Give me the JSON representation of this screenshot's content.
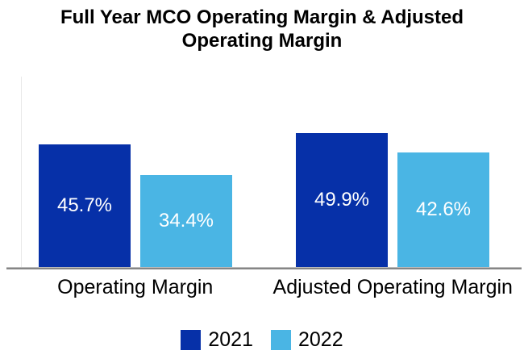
{
  "title": {
    "line1": "Full Year MCO Operating Margin & Adjusted",
    "line2": "Operating Margin"
  },
  "chart_data": {
    "type": "bar",
    "title": "Full Year MCO Operating Margin & Adjusted Operating Margin",
    "categories": [
      "Operating Margin",
      "Adjusted Operating Margin"
    ],
    "series": [
      {
        "name": "2021",
        "color": "#0630a8",
        "values": [
          45.7,
          49.9
        ]
      },
      {
        "name": "2022",
        "color": "#4ab5e4",
        "values": [
          34.4,
          42.6
        ]
      }
    ],
    "value_labels": [
      [
        "45.7%",
        "49.9%"
      ],
      [
        "34.4%",
        "42.6%"
      ]
    ],
    "value_label_format": "percent-one-decimal",
    "value_label_color": "#ffffff",
    "xlabel": "",
    "ylabel": "",
    "ylim": [
      0,
      60
    ],
    "grid": false,
    "axis_color": "#858585",
    "legend_position": "bottom"
  }
}
